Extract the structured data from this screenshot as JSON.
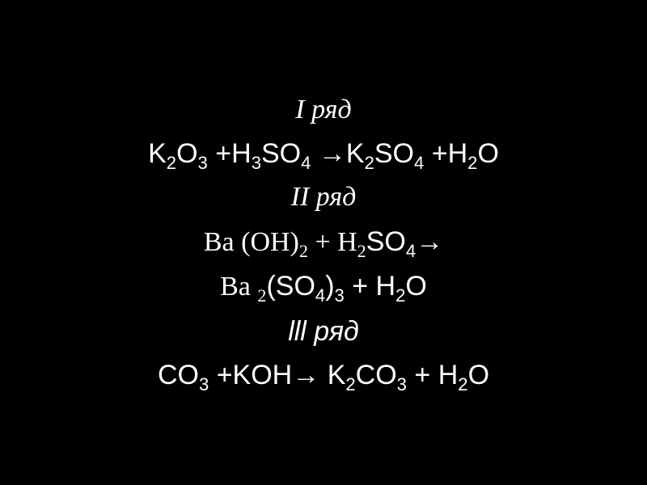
{
  "background_color": "#000000",
  "text_color": "#ffffff",
  "header_fontsize": 34,
  "equation_fontsize": 34,
  "header_font_style": "italic",
  "header_font_family": "Times New Roman",
  "equation_font_family_primary": "Arial",
  "equation_font_family_secondary": "Times New Roman",
  "rows": {
    "row1": {
      "header": "I ряд",
      "equation_parts": {
        "r1": "K",
        "s1": "2",
        "r2": "O",
        "s2": "3",
        "plus1": "  +H",
        "s3": "3",
        "r3": "SO",
        "s4": "4",
        "arrow": " →",
        "r4": "K",
        "s5": "2",
        "r5": "SO",
        "s6": "4",
        "plus2": " +H",
        "s7": "2",
        "r6": "O"
      }
    },
    "row2": {
      "header": "II ряд",
      "equation1_parts": {
        "r1": "Ba ",
        "r2": "(OH)",
        "s1": "2",
        "plus1": "   + H",
        "s2": "2",
        "r3": "SO",
        "s3": "4",
        "arrow": "→"
      },
      "equation2_parts": {
        "r1": "Ba ",
        "s1": "2",
        "r2": "(SO",
        "s2": "4",
        "r3": ")",
        "s3": "3",
        "plus1": "  +  H",
        "s4": "2",
        "r4": "O"
      }
    },
    "row3": {
      "header": "lll ряд",
      "equation_parts": {
        "r1": "CO",
        "s1": "3",
        "plus1": "  +KOH",
        "arrow": "→ ",
        "r2": "K",
        "s2": "2",
        "r3": "CO",
        "s3": "3",
        "plus2": "   +  H",
        "s4": "2",
        "r4": "O"
      }
    }
  }
}
